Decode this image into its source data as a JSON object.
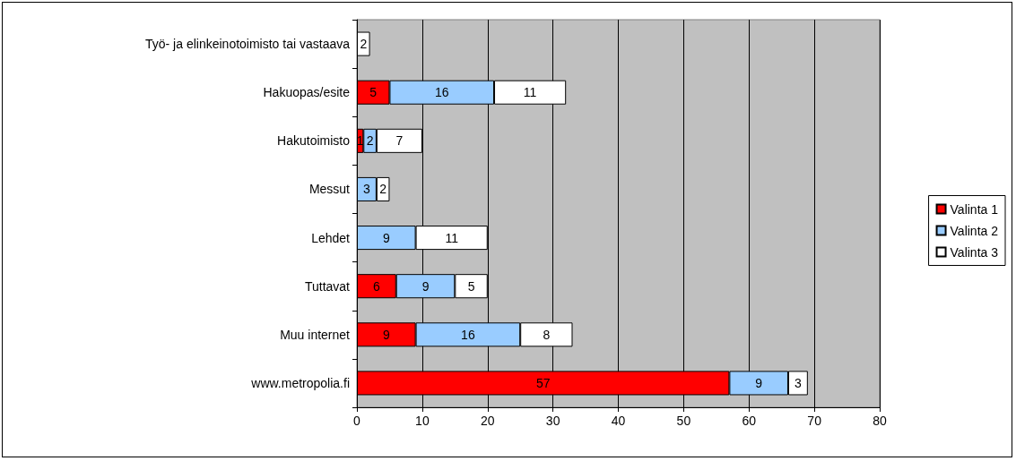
{
  "chart_data": {
    "type": "bar",
    "orientation": "horizontal",
    "stacked": true,
    "data_labels": true,
    "grid": "x",
    "legend": "right",
    "categories": [
      "Työ- ja elinkeinotoimisto tai vastaava",
      "Hakuopas/esite",
      "Hakutoimisto",
      "Messut",
      "Lehdet",
      "Tuttavat",
      "Muu internet",
      "www.metropolia.fi"
    ],
    "series": [
      {
        "name": "Valinta 1",
        "color": "#ff0000",
        "values": [
          null,
          5,
          1,
          null,
          null,
          6,
          9,
          57
        ]
      },
      {
        "name": "Valinta 2",
        "color": "#99ccff",
        "values": [
          null,
          16,
          2,
          3,
          9,
          9,
          16,
          9
        ]
      },
      {
        "name": "Valinta 3",
        "color": "#ffffff",
        "values": [
          2,
          11,
          7,
          2,
          11,
          5,
          8,
          3
        ]
      }
    ],
    "xlim": [
      0,
      80
    ],
    "xticks": [
      0,
      10,
      20,
      30,
      40,
      50,
      60,
      70,
      80
    ]
  }
}
